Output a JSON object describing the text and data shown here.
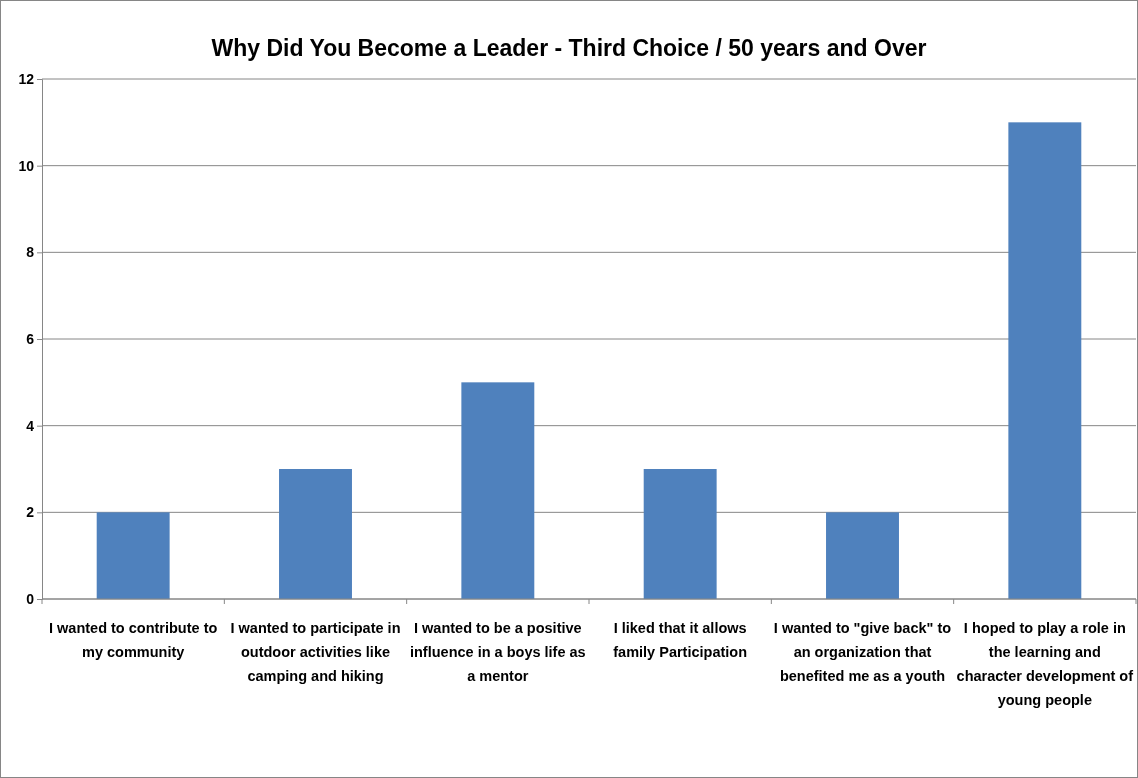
{
  "chart_data": {
    "type": "bar",
    "title": "Why Did You Become a Leader - Third Choice / 50 years and Over",
    "categories": [
      "I wanted to contribute to my community",
      "I wanted to participate in outdoor activities like camping and hiking",
      "I wanted to be a positive influence in a boys life as a mentor",
      "I liked that it allows family Participation",
      "I wanted to \"give back\" to an organization that benefited me as a youth",
      "I hoped to play a role in the learning and character development of young people"
    ],
    "values": [
      2,
      3,
      5,
      3,
      2,
      11
    ],
    "color": "#4f81bd",
    "ylim": [
      0,
      12
    ],
    "yticks": [
      0,
      2,
      4,
      6,
      8,
      10,
      12
    ],
    "grid": "y"
  }
}
